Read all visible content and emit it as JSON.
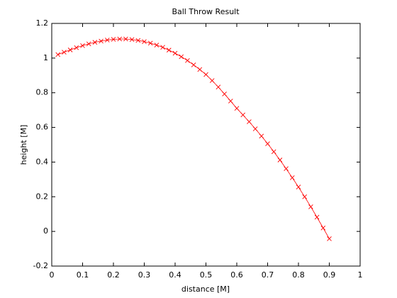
{
  "chart_data": {
    "type": "line",
    "title": "Ball Throw Result",
    "x_label": "distance [M]",
    "y_label": "height [M]",
    "x": [
      0.02,
      0.04,
      0.06,
      0.08,
      0.1,
      0.12,
      0.14,
      0.16,
      0.18,
      0.2,
      0.22,
      0.24,
      0.26,
      0.28,
      0.3,
      0.32,
      0.34,
      0.36,
      0.38,
      0.4,
      0.42,
      0.44,
      0.46,
      0.48,
      0.5,
      0.52,
      0.54,
      0.56,
      0.58,
      0.6,
      0.62,
      0.64,
      0.66,
      0.68,
      0.7,
      0.72,
      0.74,
      0.76,
      0.78,
      0.8,
      0.82,
      0.84,
      0.86,
      0.88,
      0.9
    ],
    "series": [
      {
        "color": "#ff0000",
        "marker": "x",
        "values": [
          1.02,
          1.034,
          1.047,
          1.06,
          1.072,
          1.082,
          1.091,
          1.098,
          1.104,
          1.108,
          1.11,
          1.11,
          1.107,
          1.102,
          1.095,
          1.086,
          1.075,
          1.062,
          1.046,
          1.028,
          1.008,
          0.986,
          0.961,
          0.934,
          0.905,
          0.87,
          0.833,
          0.793,
          0.752,
          0.71,
          0.672,
          0.633,
          0.592,
          0.55,
          0.506,
          0.46,
          0.412,
          0.362,
          0.31,
          0.256,
          0.2,
          0.142,
          0.082,
          0.02,
          -0.042
        ]
      }
    ],
    "xlim": [
      0,
      1
    ],
    "xticks": [
      0,
      0.1,
      0.2,
      0.3,
      0.4,
      0.5,
      0.6,
      0.7,
      0.8,
      0.9,
      1
    ],
    "ylim": [
      -0.2,
      1.2
    ],
    "yticks": [
      -0.2,
      0,
      0.2,
      0.4,
      0.6,
      0.8,
      1,
      1.2
    ],
    "grid": false
  }
}
